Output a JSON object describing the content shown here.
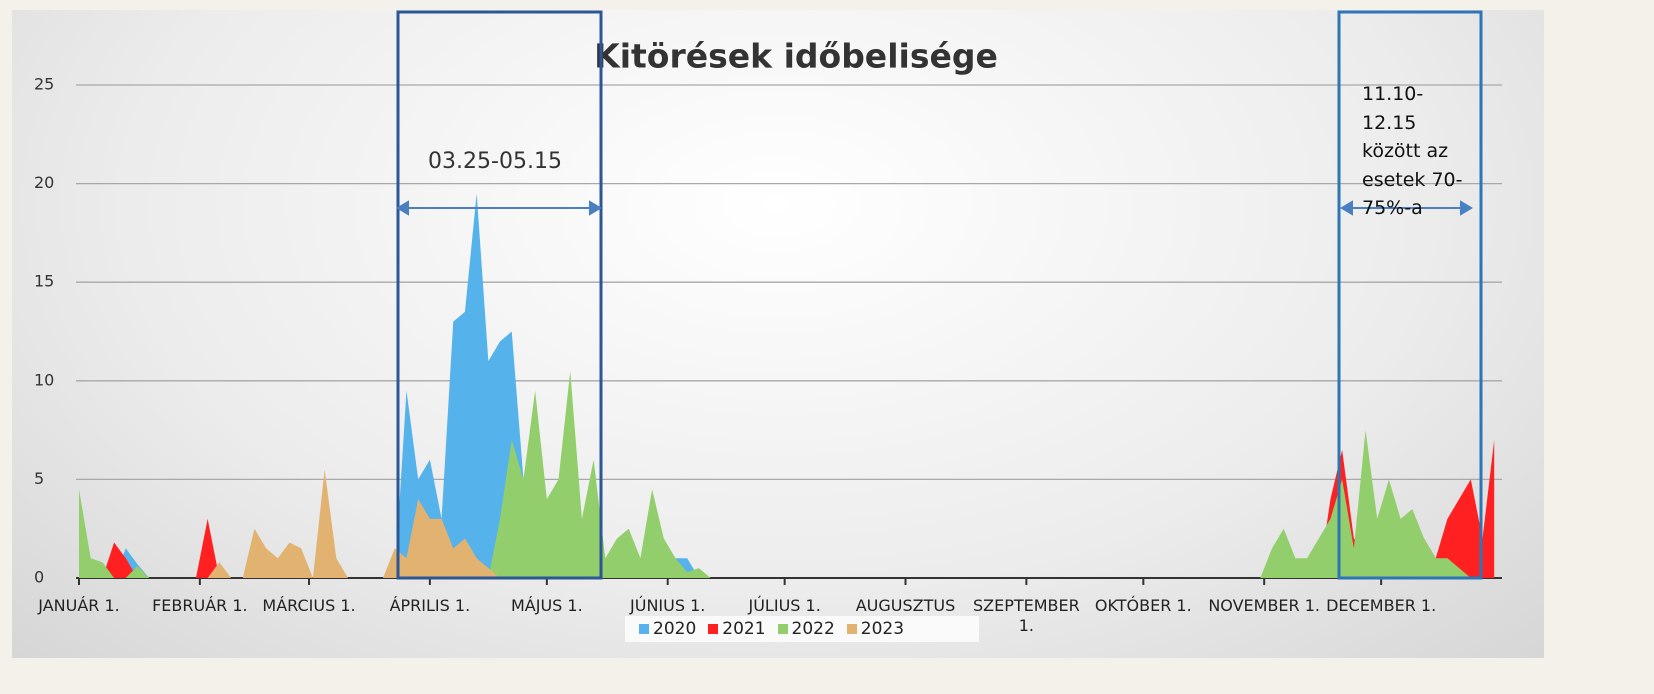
{
  "chart_data": {
    "type": "area",
    "title": "Kitörések időbelisége",
    "annotations": [
      "03.25-05.15",
      "11.10-12.15 között az esetek 70-75%-a"
    ],
    "x": [
      0,
      3,
      6,
      9,
      12,
      15,
      18,
      21,
      24,
      27,
      30,
      33,
      36,
      39,
      42,
      45,
      48,
      51,
      54,
      57,
      60,
      63,
      66,
      69,
      72,
      75,
      78,
      81,
      84,
      87,
      90,
      93,
      96,
      99,
      102,
      105,
      108,
      111,
      114,
      117,
      120,
      123,
      126,
      129,
      132,
      135,
      138,
      141,
      144,
      147,
      150,
      153,
      156,
      159,
      162,
      165,
      168,
      171,
      174,
      177,
      180,
      183,
      186,
      189,
      192,
      195,
      198,
      201,
      204,
      207,
      210,
      213,
      216,
      219,
      222,
      225,
      228,
      231,
      234,
      237,
      240,
      243,
      246,
      249,
      252,
      255,
      258,
      261,
      264,
      267,
      270,
      273,
      276,
      279,
      282,
      285,
      288,
      291,
      294,
      297,
      300,
      303,
      306,
      309,
      312,
      315,
      318,
      321,
      324,
      327,
      330,
      333,
      336,
      339,
      342,
      345,
      348,
      351,
      354,
      357,
      360,
      363
    ],
    "series": [
      {
        "name": "2020",
        "color": "#56b2ea",
        "values": [
          0,
          0,
          0,
          0,
          1.5,
          0.7,
          0,
          0,
          0,
          0,
          0,
          0,
          0,
          0,
          0,
          0,
          0,
          0,
          0,
          0,
          0,
          0,
          0,
          0,
          0,
          0,
          0,
          0,
          9.5,
          5,
          6,
          3,
          13,
          13.5,
          19.5,
          11,
          12,
          12.5,
          5,
          2,
          2,
          1.5,
          0,
          0,
          0,
          0,
          0,
          0,
          0,
          0,
          0,
          1,
          1,
          0,
          0,
          0,
          0,
          0,
          0,
          0,
          0,
          0,
          0,
          0,
          0,
          0,
          0,
          0,
          0,
          0,
          0,
          0,
          0,
          0,
          0,
          0,
          0,
          0,
          0,
          0,
          0,
          0,
          0,
          0,
          0,
          0,
          0,
          0,
          0,
          0,
          0,
          0,
          0,
          0,
          0,
          0,
          0,
          0,
          0,
          0,
          0,
          0,
          0,
          0,
          0,
          0,
          0,
          0,
          0,
          0,
          0,
          0,
          0,
          0,
          0,
          0,
          0,
          0,
          0,
          0,
          0,
          0
        ]
      },
      {
        "name": "2021",
        "color": "#ff2121",
        "values": [
          0,
          0,
          0,
          1.8,
          1,
          0,
          0,
          0,
          0,
          0,
          0,
          3,
          0,
          0,
          0,
          0,
          0,
          0,
          0,
          0,
          0,
          0,
          0,
          0,
          0,
          0,
          0,
          0,
          0,
          0,
          0,
          0,
          0,
          0,
          0,
          0,
          0,
          0,
          0,
          0,
          0,
          0,
          0,
          0,
          0,
          0,
          0,
          0,
          0,
          0,
          0,
          0,
          0,
          0,
          0,
          0,
          0,
          0,
          0,
          0,
          0,
          0,
          0,
          0,
          0,
          0,
          0,
          0,
          0,
          0,
          0,
          0,
          0,
          0,
          0,
          0,
          0,
          0,
          0,
          0,
          0,
          0,
          0,
          0,
          0,
          0,
          0,
          0,
          0,
          0,
          0,
          0,
          0,
          0,
          0,
          0,
          0,
          0,
          0,
          0,
          0,
          0,
          0,
          0,
          0,
          0,
          0,
          4,
          6.5,
          2,
          1.5,
          2,
          2.5,
          1,
          1.5,
          2,
          1,
          3,
          4,
          5,
          2,
          7
        ]
      },
      {
        "name": "2022",
        "color": "#92cf6c",
        "values": [
          4.5,
          1,
          0.8,
          0,
          0,
          0.6,
          0,
          0,
          0,
          0,
          0,
          0,
          0,
          0,
          0,
          0,
          0,
          0,
          0,
          0,
          0,
          0,
          0,
          0,
          0,
          0,
          0,
          0,
          0,
          0,
          0,
          0,
          0,
          0,
          0,
          0,
          3,
          7,
          5,
          9.5,
          4,
          5,
          10.5,
          3,
          6,
          1,
          2,
          2.5,
          1,
          4.5,
          2,
          1,
          0.3,
          0.5,
          0,
          0,
          0,
          0,
          0,
          0,
          0,
          0,
          0,
          0,
          0,
          0,
          0,
          0,
          0,
          0,
          0,
          0,
          0,
          0,
          0,
          0,
          0,
          0,
          0,
          0,
          0,
          0,
          0,
          0,
          0,
          0,
          0,
          0,
          0,
          0,
          0,
          0,
          0,
          0,
          0,
          0,
          0,
          0,
          0,
          0,
          0,
          0,
          1.5,
          2.5,
          1,
          1,
          2,
          3,
          5,
          1.5,
          7.5,
          3,
          5,
          3,
          3.5,
          2,
          1,
          1,
          0.5,
          0,
          0,
          0
        ]
      },
      {
        "name": "2023",
        "color": "#e2b271",
        "values": [
          0,
          0,
          0,
          0,
          0,
          0,
          0,
          0,
          0,
          0,
          0,
          0,
          0.8,
          0,
          0,
          2.5,
          1.5,
          1,
          1.8,
          1.5,
          0,
          5.5,
          1,
          0,
          0,
          0,
          0,
          1.5,
          1,
          4,
          3,
          3,
          1.5,
          2,
          1,
          0.5,
          0,
          0,
          0,
          0,
          0,
          0,
          0,
          0,
          0,
          0,
          0,
          0,
          0,
          0,
          0,
          0,
          0,
          0,
          0,
          0,
          0,
          0,
          0,
          0,
          0,
          0,
          0,
          0,
          0,
          0,
          0,
          0,
          0,
          0,
          0,
          0,
          0,
          0,
          0,
          0,
          0,
          0,
          0,
          0,
          0,
          0,
          0,
          0,
          0,
          0,
          0,
          0,
          0,
          0,
          0,
          0,
          0,
          0,
          0,
          0,
          0,
          0,
          0,
          0,
          0,
          0,
          0,
          0,
          0,
          0,
          0,
          0,
          0,
          0,
          0,
          0,
          0,
          0,
          0,
          0,
          0,
          0,
          0,
          0,
          0,
          0
        ]
      }
    ],
    "xlim": [
      0,
      365
    ],
    "xticks": [
      {
        "value": 0,
        "label": "JANUÁR 1."
      },
      {
        "value": 31,
        "label": "FEBRUÁR 1."
      },
      {
        "value": 59,
        "label": "MÁRCIUS 1."
      },
      {
        "value": 90,
        "label": "ÁPRILIS 1."
      },
      {
        "value": 120,
        "label": "MÁJUS 1."
      },
      {
        "value": 151,
        "label": "JÚNIUS 1."
      },
      {
        "value": 181,
        "label": "JÚLIUS 1."
      },
      {
        "value": 212,
        "label": "AUGUSZTUS 1."
      },
      {
        "value": 243,
        "label": "SZEPTEMBER 1."
      },
      {
        "value": 273,
        "label": "OKTÓBER 1."
      },
      {
        "value": 304,
        "label": "NOVEMBER 1."
      },
      {
        "value": 334,
        "label": "DECEMBER 1."
      }
    ],
    "ylim": [
      0,
      25
    ],
    "yticks": [
      0,
      5,
      10,
      15,
      20,
      25
    ],
    "grid": true,
    "legend": "bottom"
  }
}
